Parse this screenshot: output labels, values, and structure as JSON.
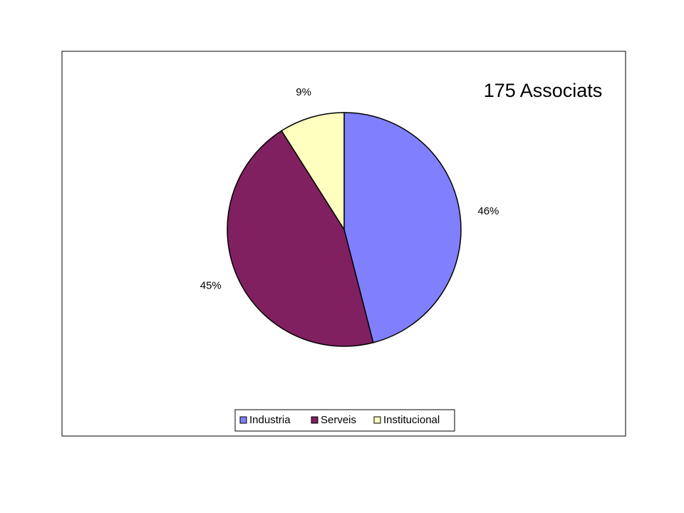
{
  "chart_data": {
    "type": "pie",
    "title": "175 Associats",
    "categories": [
      "Industria",
      "Serveis",
      "Institucional"
    ],
    "values": [
      46,
      45,
      9
    ],
    "value_labels": [
      "46%",
      "45%",
      "9%"
    ],
    "colors": [
      "#8080ff",
      "#802060",
      "#ffffc0"
    ],
    "legend": "bottom"
  }
}
